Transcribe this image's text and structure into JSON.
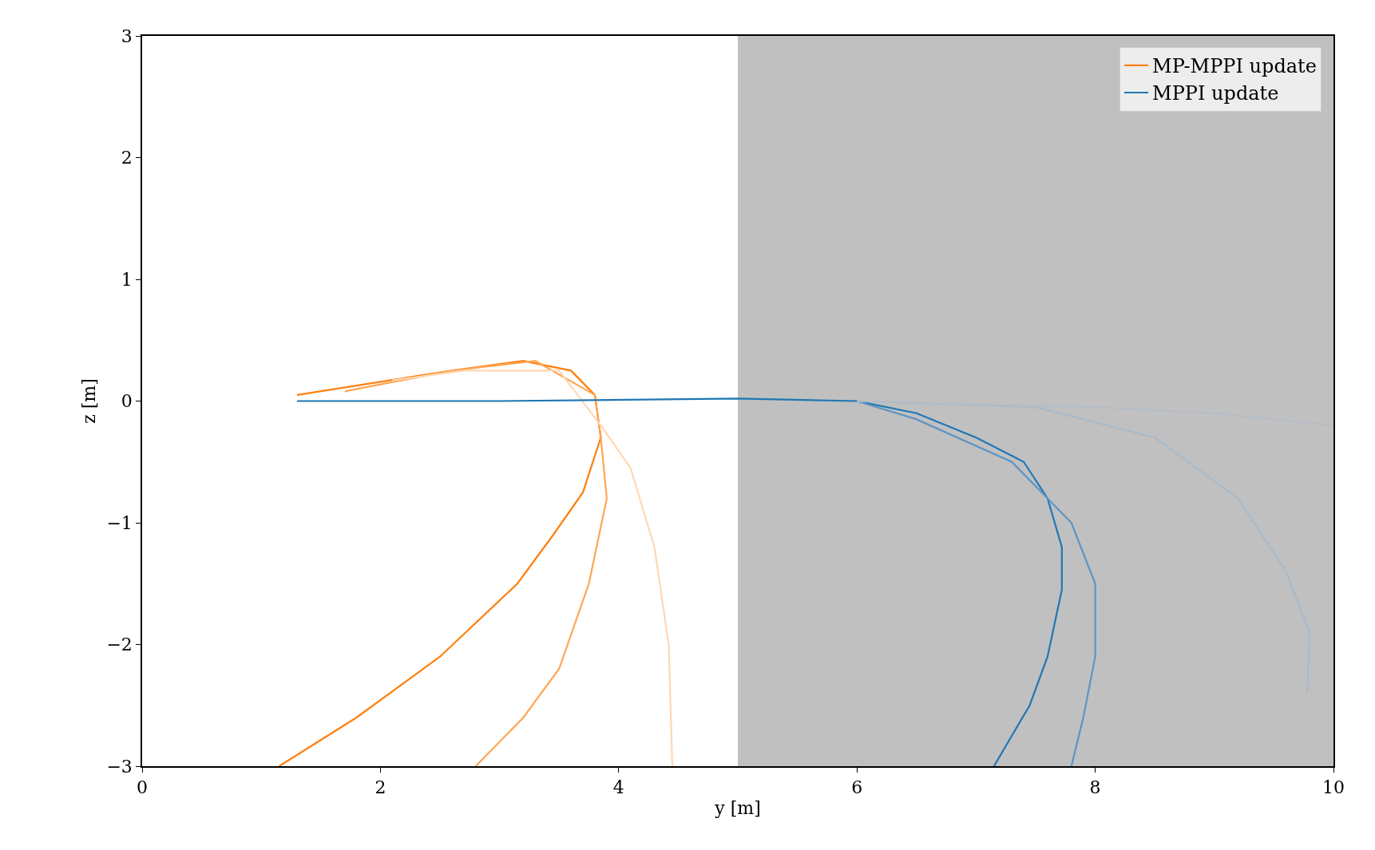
{
  "chart_data": {
    "type": "line",
    "xlabel": "y [m]",
    "ylabel": "z [m]",
    "xlim": [
      0,
      10
    ],
    "ylim": [
      -3,
      3
    ],
    "xticks": [
      0,
      2,
      4,
      6,
      8,
      10
    ],
    "yticks": [
      {
        "value": -3,
        "label": "−3"
      },
      {
        "value": -2,
        "label": "−2"
      },
      {
        "value": -1,
        "label": "−1"
      },
      0,
      1,
      2,
      3
    ],
    "bands": [
      {
        "axis": "x",
        "from": 5,
        "to": 10,
        "label": null,
        "color": "#c0c0c0"
      }
    ],
    "legend": "top right",
    "grid": false,
    "marker": "none",
    "line_style": "solid",
    "series": [
      {
        "name": "MP-MPPI update",
        "color": "#ff7f0e",
        "x": [
          1.3,
          2.6,
          3.2,
          3.6,
          3.8,
          3.85,
          3.7,
          3.45,
          3.15,
          2.5,
          1.8,
          1.15
        ],
        "values": [
          0.05,
          0.25,
          0.33,
          0.25,
          0.05,
          -0.3,
          -0.75,
          -1.1,
          -1.5,
          -2.1,
          -2.6,
          -3.0
        ]
      },
      {
        "color": "#ffa552",
        "x": [
          1.7,
          2.6,
          3.3,
          3.8,
          3.85,
          3.9,
          3.75,
          3.5,
          3.2,
          2.8
        ],
        "values": [
          0.08,
          0.25,
          0.33,
          0.05,
          -0.3,
          -0.8,
          -1.5,
          -2.2,
          -2.6,
          -3.0
        ]
      },
      {
        "color": "#ffd8b3",
        "x": [
          2.1,
          2.7,
          3.5,
          3.85,
          4.1,
          4.3,
          4.42,
          4.45
        ],
        "values": [
          0.17,
          0.25,
          0.25,
          -0.2,
          -0.55,
          -1.2,
          -2.0,
          -3.0
        ]
      },
      {
        "name": "MPPI update",
        "color": "#1f77b4",
        "x": [
          1.3,
          3,
          5,
          6,
          6.5,
          7.0,
          7.4,
          7.6,
          7.72,
          7.72,
          7.6,
          7.45,
          7.15
        ],
        "values": [
          0,
          0,
          0.02,
          0,
          -0.1,
          -0.3,
          -0.5,
          -0.8,
          -1.2,
          -1.55,
          -2.1,
          -2.5,
          -3.0
        ]
      },
      {
        "color": "#5d94c4",
        "x": [
          6,
          6.5,
          7.3,
          7.8,
          8.0,
          8.0,
          7.9,
          7.8
        ],
        "values": [
          0,
          -0.15,
          -0.5,
          -1.0,
          -1.5,
          -2.1,
          -2.6,
          -3.0
        ]
      },
      {
        "color": "#a9bac9",
        "x": [
          6,
          7.5,
          8.5,
          9.2,
          9.6,
          9.8,
          9.78
        ],
        "values": [
          0,
          -0.05,
          -0.3,
          -0.8,
          -1.4,
          -1.9,
          -2.4
        ]
      },
      {
        "color": "#b5bdc4",
        "x": [
          6,
          8,
          9,
          10
        ],
        "values": [
          0,
          -0.05,
          -0.1,
          -0.2
        ]
      }
    ]
  }
}
